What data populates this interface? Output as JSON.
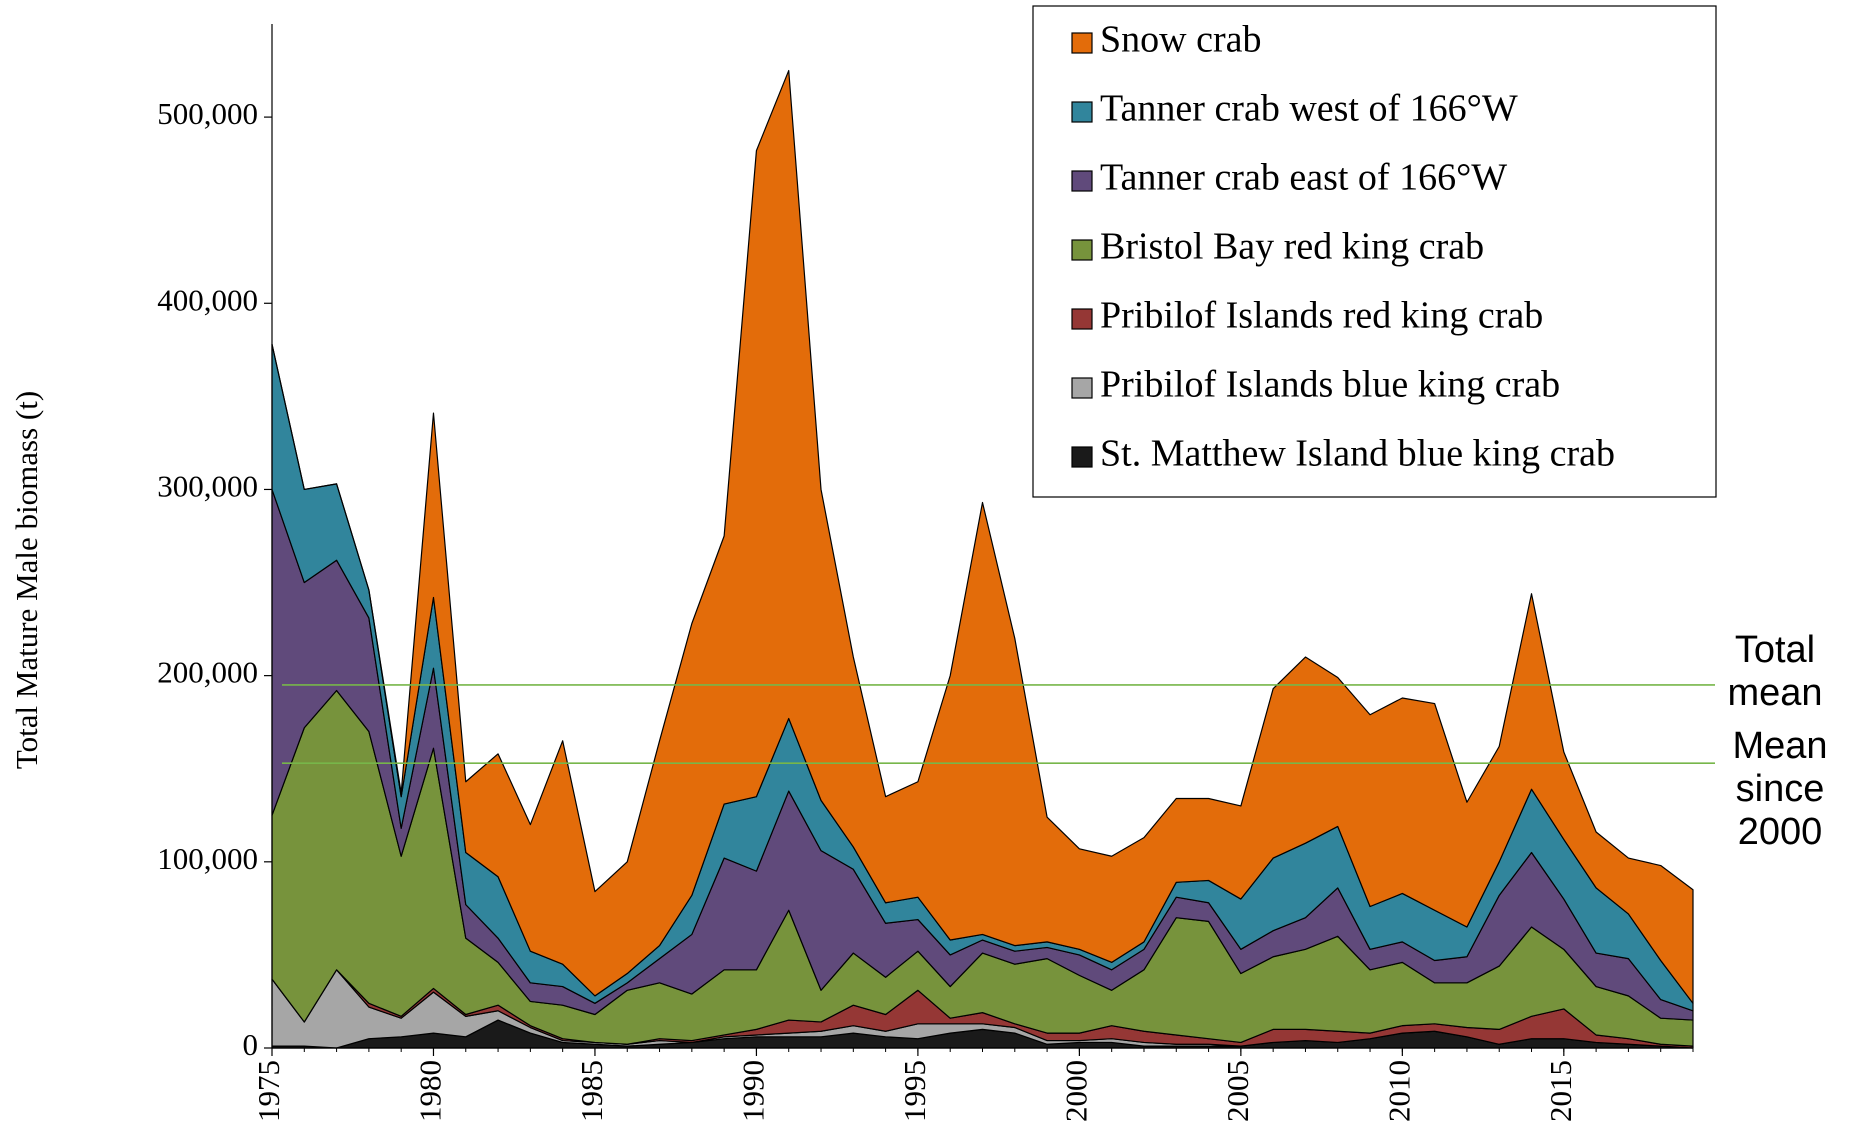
{
  "chart_data": {
    "type": "stacked_area",
    "y_label": "Total Mature Male biomass (t)",
    "x": [
      1975,
      1976,
      1977,
      1978,
      1979,
      1980,
      1981,
      1982,
      1983,
      1984,
      1985,
      1986,
      1987,
      1988,
      1989,
      1990,
      1991,
      1992,
      1993,
      1994,
      1995,
      1996,
      1997,
      1998,
      1999,
      2000,
      2001,
      2002,
      2003,
      2004,
      2005,
      2006,
      2007,
      2008,
      2009,
      2010,
      2011,
      2012,
      2013,
      2014,
      2015,
      2016,
      2017,
      2018,
      2019
    ],
    "xlim": [
      1975,
      2019
    ],
    "xticks": [
      1975,
      1980,
      1985,
      1990,
      1995,
      2000,
      2005,
      2010,
      2015
    ],
    "ylim": [
      0,
      550000
    ],
    "yticks": [
      0,
      {
        "value": 100000,
        "label": "100,000"
      },
      {
        "value": 200000,
        "label": "200,000"
      },
      {
        "value": 300000,
        "label": "300,000"
      },
      {
        "value": 400000,
        "label": "400,000"
      },
      {
        "value": 500000,
        "label": "500,000"
      }
    ],
    "grid": false,
    "legend": "top-right",
    "series": [
      {
        "name": "Snow crab",
        "color": "#e36c0a",
        "values": [
          0,
          0,
          0,
          0,
          2000,
          99000,
          38000,
          66000,
          68000,
          120000,
          56000,
          60000,
          110000,
          146000,
          144000,
          347000,
          348000,
          167000,
          102000,
          57000,
          62000,
          142000,
          232000,
          165000,
          67000,
          54000,
          57000,
          56000,
          45000,
          44000,
          50000,
          91000,
          100000,
          80000,
          103000,
          105000,
          111000,
          67000,
          62000,
          105000,
          47000,
          30000,
          30000,
          51000,
          61000
        ]
      },
      {
        "name": "Tanner crab west of 166°W",
        "color": "#31859c",
        "values": [
          78000,
          50000,
          41000,
          15000,
          17000,
          38000,
          28000,
          33000,
          17000,
          12000,
          4000,
          5000,
          7000,
          21000,
          29000,
          40000,
          39000,
          27000,
          12000,
          11000,
          12000,
          8000,
          3000,
          3000,
          3000,
          3000,
          4000,
          4000,
          8000,
          12000,
          27000,
          39000,
          40000,
          33000,
          23000,
          26000,
          27000,
          16000,
          18000,
          34000,
          32000,
          35000,
          24000,
          21000,
          4000
        ]
      },
      {
        "name": "Tanner crab east of 166°W",
        "color": "#604a7b",
        "values": [
          175000,
          78000,
          70000,
          61000,
          15000,
          43000,
          18000,
          13000,
          10000,
          10000,
          6000,
          4000,
          13000,
          32000,
          60000,
          53000,
          64000,
          75000,
          45000,
          29000,
          17000,
          17000,
          7000,
          7000,
          6000,
          11000,
          11000,
          11000,
          11000,
          10000,
          13000,
          14000,
          17000,
          26000,
          11000,
          11000,
          12000,
          14000,
          38000,
          40000,
          27000,
          18000,
          20000,
          10000,
          5000
        ]
      },
      {
        "name": "Bristol Bay red king crab",
        "color": "#77933c",
        "values": [
          88000,
          158000,
          150000,
          146000,
          86000,
          129000,
          41000,
          23000,
          13000,
          18000,
          15000,
          29000,
          30000,
          25000,
          35000,
          32000,
          59000,
          17000,
          28000,
          20000,
          21000,
          17000,
          32000,
          32000,
          40000,
          31000,
          19000,
          33000,
          63000,
          63000,
          37000,
          39000,
          43000,
          51000,
          34000,
          34000,
          22000,
          24000,
          34000,
          48000,
          32000,
          26000,
          23000,
          14000,
          14000
        ]
      },
      {
        "name": "Pribilof Islands red king crab",
        "color": "#953735",
        "values": [
          0,
          0,
          0,
          2000,
          1000,
          2000,
          1000,
          3000,
          1000,
          1000,
          0,
          0,
          1000,
          1000,
          1000,
          3000,
          7000,
          5000,
          11000,
          9000,
          18000,
          3000,
          6000,
          2000,
          4000,
          4000,
          7000,
          6000,
          5000,
          3000,
          2000,
          7000,
          6000,
          6000,
          3000,
          4000,
          4000,
          5000,
          8000,
          12000,
          16000,
          4000,
          3000,
          1000,
          1000
        ]
      },
      {
        "name": "Pribilof Islands blue king crab",
        "color": "#a6a6a6",
        "values": [
          36000,
          13000,
          42000,
          17000,
          10000,
          22000,
          11000,
          5000,
          3000,
          1000,
          1000,
          1000,
          2000,
          0,
          1000,
          1000,
          2000,
          3000,
          4000,
          3000,
          8000,
          5000,
          3000,
          3000,
          2000,
          1000,
          2000,
          2000,
          1000,
          1000,
          0,
          0,
          0,
          0,
          0,
          0,
          0,
          0,
          0,
          0,
          0,
          0,
          0,
          0,
          0
        ]
      },
      {
        "name": "St. Matthew Island blue king crab",
        "color": "#1a1a1a",
        "values": [
          1000,
          1000,
          0,
          5000,
          6000,
          8000,
          6000,
          15000,
          8000,
          3000,
          2000,
          1000,
          2000,
          3000,
          5000,
          6000,
          6000,
          6000,
          8000,
          6000,
          5000,
          8000,
          10000,
          8000,
          2000,
          3000,
          3000,
          1000,
          1000,
          1000,
          1000,
          3000,
          4000,
          3000,
          5000,
          8000,
          9000,
          6000,
          2000,
          5000,
          5000,
          3000,
          2000,
          1000,
          0
        ]
      }
    ],
    "reference_lines": [
      {
        "label": "Total mean",
        "value": 195000,
        "color": "#77b64a"
      },
      {
        "label": "Mean since 2000",
        "value": 153000,
        "color": "#77b64a"
      }
    ]
  }
}
